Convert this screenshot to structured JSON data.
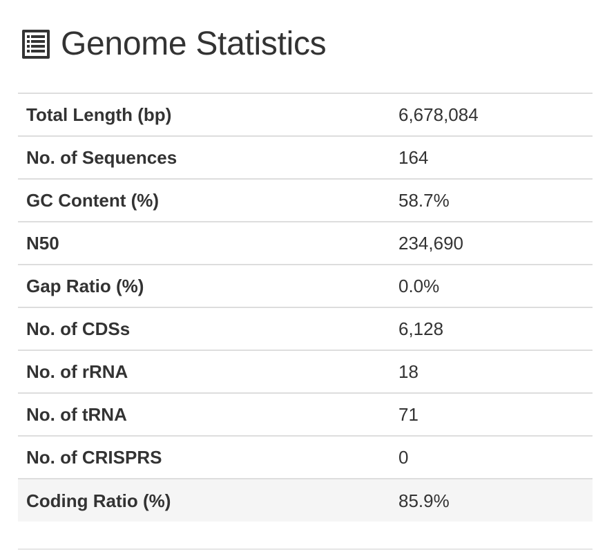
{
  "header": {
    "title": "Genome Statistics",
    "icon": "list-alt-icon"
  },
  "stats": {
    "rows": [
      {
        "label": "Total Length (bp)",
        "value": "6,678,084"
      },
      {
        "label": "No. of Sequences",
        "value": "164"
      },
      {
        "label": "GC Content (%)",
        "value": "58.7%"
      },
      {
        "label": "N50",
        "value": "234,690"
      },
      {
        "label": "Gap Ratio (%)",
        "value": "0.0%"
      },
      {
        "label": "No. of CDSs",
        "value": "6,128"
      },
      {
        "label": "No. of rRNA",
        "value": "18"
      },
      {
        "label": "No. of tRNA",
        "value": "71"
      },
      {
        "label": "No. of CRISPRS",
        "value": "0"
      },
      {
        "label": "Coding Ratio (%)",
        "value": "85.9%"
      }
    ]
  },
  "colors": {
    "text": "#333333",
    "border": "#dddddd",
    "highlight_row": "#f5f5f5"
  }
}
